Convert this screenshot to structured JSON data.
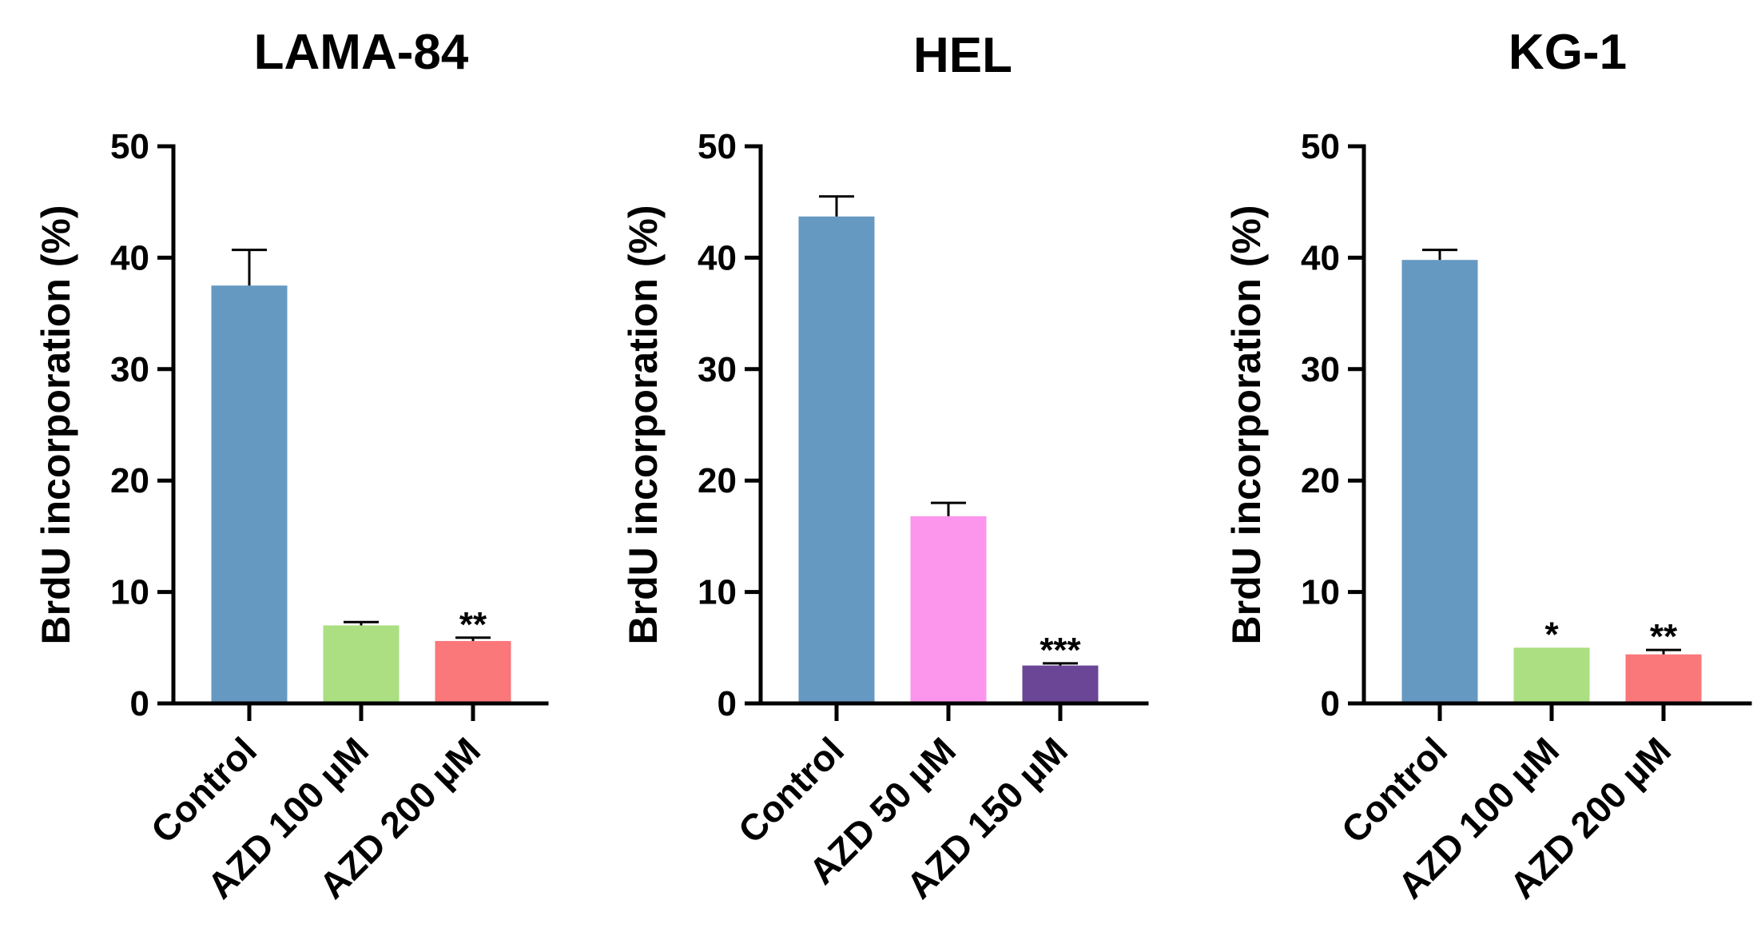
{
  "chart_data": [
    {
      "type": "bar",
      "title": "LAMA-84",
      "ylabel": "BrdU incorporation (%)",
      "xlabel": "",
      "ylim": [
        0,
        50
      ],
      "yticks": [
        0,
        10,
        20,
        30,
        40,
        50
      ],
      "categories": [
        "Control",
        "AZD 100 µM",
        "AZD 200 µM"
      ],
      "values": [
        37.5,
        7.0,
        5.6
      ],
      "errors": [
        3.2,
        0.3,
        0.3
      ],
      "significance": [
        "",
        "",
        "**"
      ],
      "colors": [
        "#6699c2",
        "#abdf82",
        "#fa777a"
      ]
    },
    {
      "type": "bar",
      "title": "HEL",
      "ylabel": "BrdU incorporation (%)",
      "xlabel": "",
      "ylim": [
        0,
        50
      ],
      "yticks": [
        0,
        10,
        20,
        30,
        40,
        50
      ],
      "categories": [
        "Control",
        "AZD 50 µM",
        "AZD 150 µM"
      ],
      "values": [
        43.7,
        16.8,
        3.4
      ],
      "errors": [
        1.8,
        1.2,
        0.2
      ],
      "significance": [
        "",
        "",
        "***"
      ],
      "colors": [
        "#6699c2",
        "#fb96ec",
        "#6b4696"
      ]
    },
    {
      "type": "bar",
      "title": "KG-1",
      "ylabel": "BrdU incorporation (%)",
      "xlabel": "",
      "ylim": [
        0,
        50
      ],
      "yticks": [
        0,
        10,
        20,
        30,
        40,
        50
      ],
      "categories": [
        "Control",
        "AZD 100 µM",
        "AZD 200 µM"
      ],
      "values": [
        39.8,
        5.0,
        4.4
      ],
      "errors": [
        0.9,
        0.0,
        0.4
      ],
      "significance": [
        "",
        "*",
        "**"
      ],
      "colors": [
        "#6699c2",
        "#abdf82",
        "#fa777a"
      ]
    }
  ]
}
